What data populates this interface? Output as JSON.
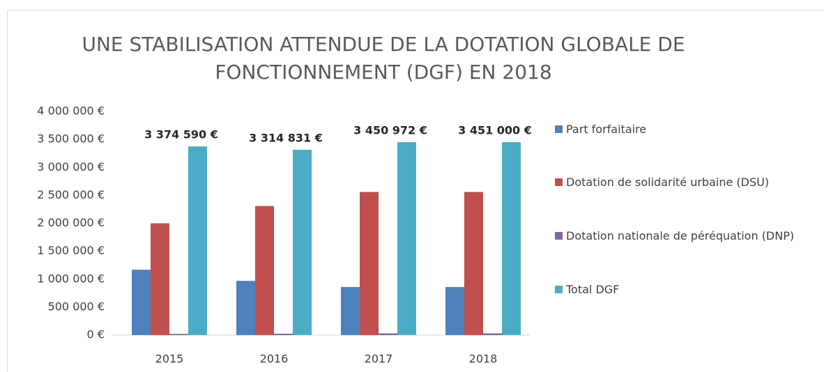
{
  "chart_data": {
    "type": "bar",
    "title": "UNE STABILISATION ATTENDUE DE LA DOTATION GLOBALE DE FONCTIONNEMENT (DGF) EN 2018",
    "categories": [
      "2015",
      "2016",
      "2017",
      "2018"
    ],
    "series": [
      {
        "name": "Part forfaitaire",
        "color": "#4f81bd",
        "values": [
          1170000,
          970000,
          860000,
          860000
        ]
      },
      {
        "name": "Dotation de solidarité urbaine (DSU)",
        "color": "#c0504d",
        "values": [
          2000000,
          2310000,
          2560000,
          2560000
        ]
      },
      {
        "name": "Dotation nationale de péréquation (DNP)",
        "color": "#8064a2",
        "values": [
          20000,
          25000,
          30000,
          30000
        ]
      },
      {
        "name": "Total DGF",
        "color": "#4bacc6",
        "values": [
          3374590,
          3314831,
          3450972,
          3451000
        ],
        "value_labels": [
          "3 374 590 €",
          "3 314 831 €",
          "3 450 972 €",
          "3 451 000 €"
        ]
      }
    ],
    "ylim": [
      0,
      4000000
    ],
    "yticks": [
      {
        "value": 0,
        "label": "0 €"
      },
      {
        "value": 500000,
        "label": "500 000 €"
      },
      {
        "value": 1000000,
        "label": "1 000 000 €"
      },
      {
        "value": 1500000,
        "label": "1 500 000 €"
      },
      {
        "value": 2000000,
        "label": "2 000 000 €"
      },
      {
        "value": 2500000,
        "label": "2 500 000 €"
      },
      {
        "value": 3000000,
        "label": "3 000 000 €"
      },
      {
        "value": 3500000,
        "label": "3 500 000 €"
      },
      {
        "value": 4000000,
        "label": "4 000 000 €"
      }
    ],
    "grid": false,
    "legend": "right"
  }
}
